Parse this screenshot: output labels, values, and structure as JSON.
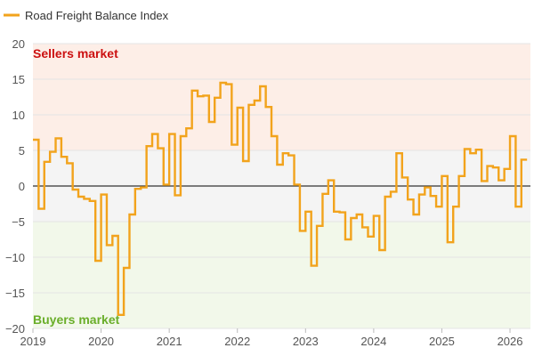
{
  "chart_data": {
    "type": "line",
    "step": true,
    "title": "",
    "xlabel": "",
    "ylabel": "",
    "ylim": [
      -20,
      20
    ],
    "xlim": [
      2019,
      2026.3
    ],
    "x_ticks": [
      "2019",
      "2020",
      "2021",
      "2022",
      "2023",
      "2024",
      "2025",
      "2026"
    ],
    "y_ticks": [
      "20",
      "15",
      "10",
      "5",
      "0",
      "−5",
      "−10",
      "−15",
      "−20"
    ],
    "grid": true,
    "legend_position": "top-left",
    "zones": [
      {
        "label": "Sellers market",
        "from": 5,
        "to": 20,
        "color": "#fdeee7",
        "label_color": "#cc1111"
      },
      {
        "label": "",
        "from": -5,
        "to": 5,
        "color": "#f4f4f4",
        "label_color": ""
      },
      {
        "label": "Buyers market",
        "from": -20,
        "to": -5,
        "color": "#f2f8ea",
        "label_color": "#6aae2a"
      }
    ],
    "series": [
      {
        "name": "Road Freight Balance Index",
        "color": "#f2a31c",
        "points": [
          [
            "2019-01",
            6.5
          ],
          [
            "2019-02",
            -3.2
          ],
          [
            "2019-03",
            3.4
          ],
          [
            "2019-04",
            4.8
          ],
          [
            "2019-05",
            6.7
          ],
          [
            "2019-06",
            4.1
          ],
          [
            "2019-07",
            3.2
          ],
          [
            "2019-08",
            -0.5
          ],
          [
            "2019-09",
            -1.5
          ],
          [
            "2019-10",
            -1.8
          ],
          [
            "2019-11",
            -2.1
          ],
          [
            "2019-12",
            -10.5
          ],
          [
            "2020-01",
            -1.2
          ],
          [
            "2020-02",
            -8.3
          ],
          [
            "2020-03",
            -7.0
          ],
          [
            "2020-04",
            -18.1
          ],
          [
            "2020-05",
            -11.5
          ],
          [
            "2020-06",
            -4.0
          ],
          [
            "2020-07",
            -0.4
          ],
          [
            "2020-08",
            -0.2
          ],
          [
            "2020-09",
            5.6
          ],
          [
            "2020-10",
            7.3
          ],
          [
            "2020-11",
            5.3
          ],
          [
            "2020-12",
            0.2
          ],
          [
            "2021-01",
            7.3
          ],
          [
            "2021-02",
            -1.3
          ],
          [
            "2021-03",
            7.0
          ],
          [
            "2021-04",
            8.1
          ],
          [
            "2021-05",
            13.4
          ],
          [
            "2021-06",
            12.6
          ],
          [
            "2021-07",
            12.7
          ],
          [
            "2021-08",
            9.0
          ],
          [
            "2021-09",
            12.4
          ],
          [
            "2021-10",
            14.5
          ],
          [
            "2021-11",
            14.3
          ],
          [
            "2021-12",
            5.8
          ],
          [
            "2022-01",
            11.0
          ],
          [
            "2022-02",
            3.5
          ],
          [
            "2022-03",
            11.4
          ],
          [
            "2022-04",
            12.0
          ],
          [
            "2022-05",
            14.0
          ],
          [
            "2022-06",
            11.1
          ],
          [
            "2022-07",
            7.0
          ],
          [
            "2022-08",
            3.0
          ],
          [
            "2022-09",
            4.6
          ],
          [
            "2022-10",
            4.3
          ],
          [
            "2022-11",
            0.2
          ],
          [
            "2022-12",
            -6.3
          ],
          [
            "2023-01",
            -3.6
          ],
          [
            "2023-02",
            -11.2
          ],
          [
            "2023-03",
            -5.6
          ],
          [
            "2023-04",
            -1.1
          ],
          [
            "2023-05",
            0.8
          ],
          [
            "2023-06",
            -3.6
          ],
          [
            "2023-07",
            -3.7
          ],
          [
            "2023-08",
            -7.5
          ],
          [
            "2023-09",
            -4.5
          ],
          [
            "2023-10",
            -4.0
          ],
          [
            "2023-11",
            -5.8
          ],
          [
            "2023-12",
            -7.1
          ],
          [
            "2024-01",
            -4.2
          ],
          [
            "2024-02",
            -9.0
          ],
          [
            "2024-03",
            -1.5
          ],
          [
            "2024-04",
            -0.8
          ],
          [
            "2024-05",
            4.6
          ],
          [
            "2024-06",
            1.2
          ],
          [
            "2024-07",
            -1.9
          ],
          [
            "2024-08",
            -4.0
          ],
          [
            "2024-09",
            -1.2
          ],
          [
            "2024-10",
            -0.2
          ],
          [
            "2024-11",
            -1.4
          ],
          [
            "2024-12",
            -2.9
          ],
          [
            "2025-01",
            1.4
          ],
          [
            "2025-02",
            -7.9
          ],
          [
            "2025-03",
            -2.9
          ],
          [
            "2025-04",
            1.4
          ],
          [
            "2025-05",
            5.2
          ],
          [
            "2025-06",
            4.6
          ],
          [
            "2025-07",
            5.1
          ],
          [
            "2025-08",
            0.7
          ],
          [
            "2025-09",
            2.8
          ],
          [
            "2025-10",
            2.6
          ],
          [
            "2025-11",
            0.8
          ],
          [
            "2025-12",
            2.4
          ],
          [
            "2026-01",
            7.0
          ],
          [
            "2026-02",
            -2.9
          ],
          [
            "2026-03",
            3.7
          ]
        ]
      }
    ]
  }
}
